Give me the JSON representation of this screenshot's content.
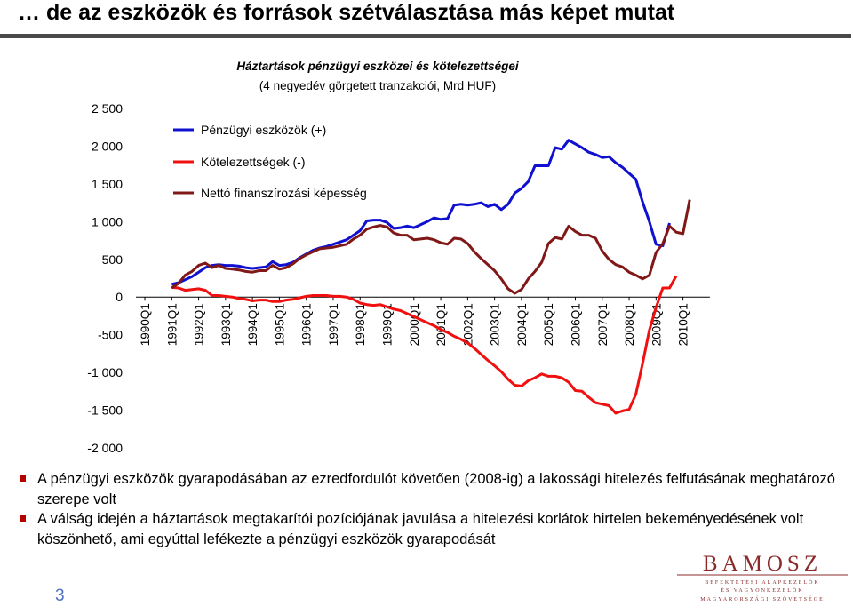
{
  "slide": {
    "title": "… de az eszközök és források szétválasztása más képet mutat",
    "page_number": "3",
    "bullets": [
      "A pénzügyi eszközök gyarapodásában az ezredfordulót követően (2008-ig) a lakossági hitelezés felfutásának meghatározó szerepe volt",
      "A válság idején a háztartások megtakarítói pozíciójának javulása a hitelezési korlátok hirtelen bekeményedésének volt köszönhető, ami egyúttal lefékezte a pénzügyi eszközök gyarapodását"
    ],
    "logo": {
      "name": "BAMOSZ",
      "tagline_1": "BEFEKTETÉSI ALAPKEZELŐK",
      "tagline_2": "ÉS VAGYONKEZELŐK",
      "tagline_3": "MAGYARORSZÁGI SZÖVETSÉGE",
      "color": "#8b2a2a"
    }
  },
  "chart_data": {
    "type": "line",
    "title": "Háztartások pénzügyi eszközei és kötelezettségei",
    "subtitle": "(4 negyedév görgetett tranzakciói, Mrd HUF)",
    "xlabel": "",
    "ylabel": "",
    "ylim": [
      -2000,
      2500
    ],
    "yticks": [
      2500,
      2000,
      1500,
      1000,
      500,
      0,
      -500,
      -1000,
      -1500,
      -2000
    ],
    "ytick_labels": [
      "2 500",
      "2 000",
      "1 500",
      "1 000",
      "500",
      "0",
      "-500",
      "-1 000",
      "-1 500",
      "-2 000"
    ],
    "x_start": "1990Q1",
    "xtick_labels": [
      "1990Q1",
      "1991Q1",
      "1992Q1",
      "1993Q1",
      "1994Q1",
      "1995Q1",
      "1996Q1",
      "1997Q1",
      "1998Q1",
      "1999Q1",
      "2000Q1",
      "2001Q1",
      "2002Q1",
      "2003Q1",
      "2004Q1",
      "2005Q1",
      "2006Q1",
      "2007Q1",
      "2008Q1",
      "2009Q1",
      "2010Q1"
    ],
    "legend_position": "top-left",
    "grid": false,
    "series": [
      {
        "name": "Pénzügyi eszközök (+)",
        "color": "#1010d0",
        "start": "1991Q1",
        "values": [
          170,
          190,
          230,
          270,
          330,
          390,
          420,
          430,
          420,
          420,
          410,
          390,
          380,
          390,
          400,
          470,
          420,
          430,
          460,
          520,
          570,
          620,
          650,
          670,
          700,
          730,
          760,
          820,
          880,
          1010,
          1020,
          1020,
          990,
          910,
          920,
          940,
          920,
          960,
          1000,
          1050,
          1030,
          1040,
          1220,
          1230,
          1220,
          1230,
          1250,
          1200,
          1230,
          1160,
          1230,
          1380,
          1440,
          1530,
          1740,
          1740,
          1740,
          1980,
          1960,
          2080,
          2030,
          1980,
          1920,
          1890,
          1850,
          1860,
          1780,
          1720,
          1640,
          1560,
          1260,
          1000,
          700,
          680,
          980
        ]
      },
      {
        "name": "Kötelezettségek (-)",
        "color": "#f01010",
        "start": "1991Q1",
        "values": [
          130,
          120,
          90,
          100,
          110,
          90,
          20,
          20,
          10,
          0,
          -20,
          -30,
          -50,
          -40,
          -40,
          -60,
          -60,
          -40,
          -30,
          -10,
          10,
          20,
          20,
          20,
          10,
          10,
          0,
          -30,
          -80,
          -100,
          -110,
          -100,
          -130,
          -160,
          -180,
          -220,
          -260,
          -300,
          -340,
          -380,
          -430,
          -470,
          -520,
          -560,
          -610,
          -680,
          -760,
          -840,
          -910,
          -990,
          -1090,
          -1170,
          -1180,
          -1110,
          -1070,
          -1020,
          -1050,
          -1050,
          -1070,
          -1130,
          -1240,
          -1250,
          -1330,
          -1400,
          -1420,
          -1440,
          -1540,
          -1510,
          -1490,
          -1290,
          -880,
          -440,
          -140,
          120,
          120,
          280
        ]
      },
      {
        "name": "Nettó finanszírozási képesség",
        "color": "#801818",
        "start": "1991Q1",
        "values": [
          120,
          180,
          290,
          340,
          420,
          450,
          390,
          420,
          380,
          370,
          360,
          340,
          330,
          350,
          350,
          420,
          370,
          390,
          440,
          510,
          560,
          600,
          640,
          650,
          660,
          680,
          700,
          770,
          820,
          900,
          930,
          950,
          930,
          850,
          820,
          820,
          760,
          770,
          780,
          760,
          720,
          700,
          780,
          770,
          710,
          600,
          510,
          430,
          350,
          240,
          110,
          50,
          100,
          240,
          340,
          460,
          710,
          790,
          770,
          940,
          870,
          820,
          820,
          780,
          610,
          500,
          430,
          400,
          330,
          290,
          240,
          290,
          590,
          710,
          940,
          860,
          840,
          1290
        ]
      }
    ]
  }
}
